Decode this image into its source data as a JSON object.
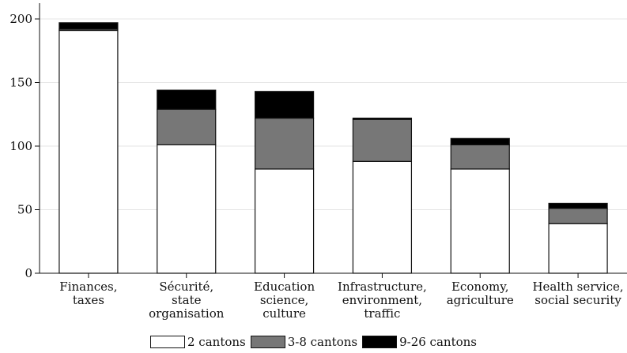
{
  "chart_data": {
    "type": "bar",
    "stacked": true,
    "categories": [
      [
        "Finances,",
        "taxes"
      ],
      [
        "Sécurité,",
        "state",
        "organisation"
      ],
      [
        "Education",
        "science,",
        "culture"
      ],
      [
        "Infrastructure,",
        "environment,",
        "traffic"
      ],
      [
        "Economy,",
        "agriculture"
      ],
      [
        "Health service,",
        "social security"
      ]
    ],
    "series": [
      {
        "name": "2 cantons",
        "color": "#ffffff",
        "values": [
          191,
          101,
          82,
          88,
          82,
          39
        ]
      },
      {
        "name": "3-8 cantons",
        "color": "#777777",
        "values": [
          1,
          28,
          40,
          33,
          19,
          12
        ]
      },
      {
        "name": "9-26 cantons",
        "color": "#000000",
        "values": [
          5,
          15,
          21,
          1,
          5,
          4
        ]
      }
    ],
    "ylim": [
      0,
      200
    ],
    "yticks": [
      0,
      50,
      100,
      150,
      200
    ],
    "grid": true,
    "legend_position": "bottom"
  }
}
